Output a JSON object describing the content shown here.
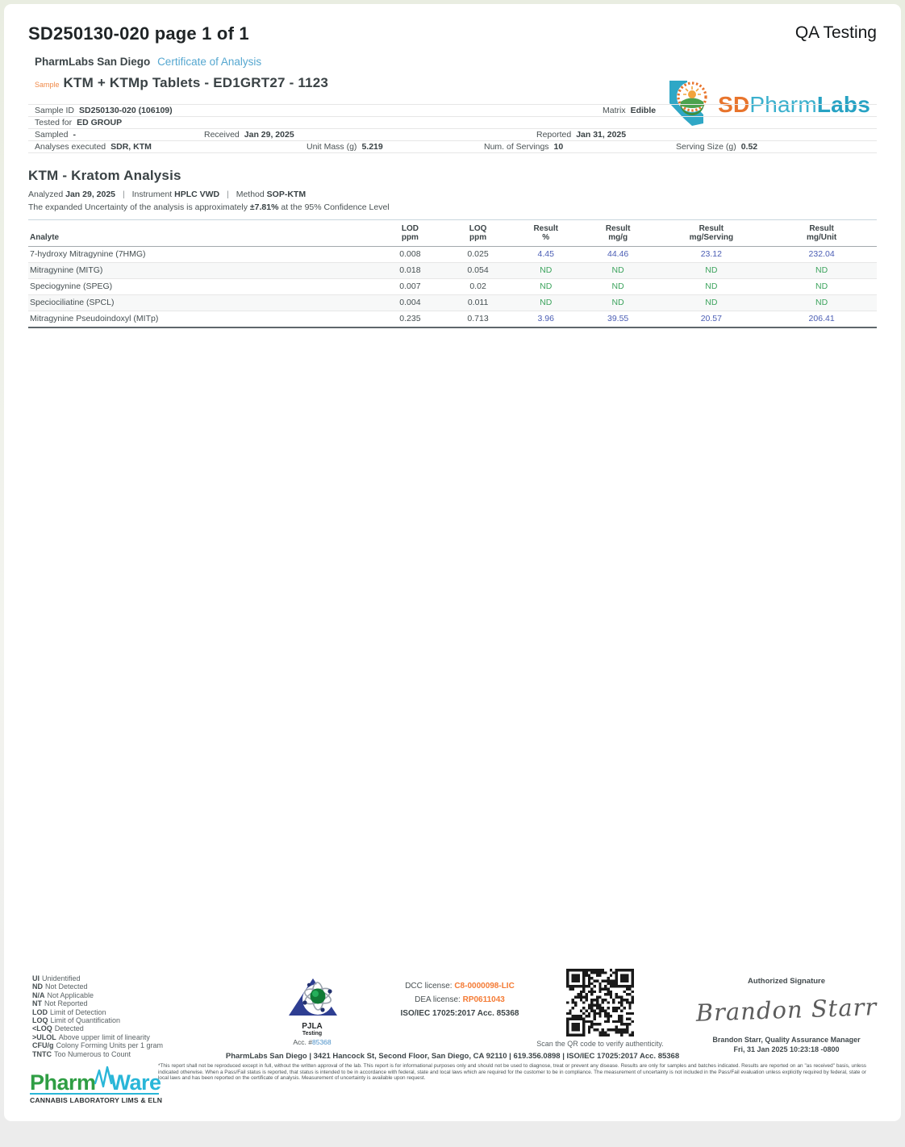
{
  "colors": {
    "accent_blue": "#55a7d0",
    "orange": "#f08a49",
    "logo_orange": "#e8742c",
    "logo_teal": "#3bb0cd",
    "result_blue": "#4a5db4",
    "nd_green": "#3da45e",
    "license_orange": "#f47b35",
    "pjla_blue": "#2e3e92",
    "pharmware_green": "#2f9e44",
    "pharmware_teal": "#29b6d8"
  },
  "page": {
    "doc_title": "SD250130-020 page 1 of 1",
    "qa_label": "QA Testing"
  },
  "header": {
    "lab_name": "PharmLabs San Diego",
    "coa_label": "Certificate of Analysis",
    "sample_label": "Sample",
    "sample_name": "KTM + KTMp Tablets - ED1GRT27 - 1123",
    "logo_sd": "SD",
    "logo_pharm": "Pharm",
    "logo_labs": "Labs"
  },
  "sample_info": {
    "sample_id_label": "Sample ID",
    "sample_id": "SD250130-020 (106109)",
    "matrix_label": "Matrix",
    "matrix": "Edible",
    "tested_for_label": "Tested for",
    "tested_for": "ED GROUP",
    "sampled_label": "Sampled",
    "sampled": "-",
    "received_label": "Received",
    "received": "Jan 29, 2025",
    "reported_label": "Reported",
    "reported": "Jan 31, 2025",
    "analyses_label": "Analyses executed",
    "analyses": "SDR, KTM",
    "unit_mass_label": "Unit Mass (g)",
    "unit_mass": "5.219",
    "servings_label": "Num. of Servings",
    "servings": "10",
    "serving_size_label": "Serving Size (g)",
    "serving_size": "0.52"
  },
  "ktm": {
    "title": "KTM - Kratom Analysis",
    "analyzed_label": "Analyzed",
    "analyzed": "Jan 29, 2025",
    "instrument_label": "Instrument",
    "instrument": "HPLC VWD",
    "method_label": "Method",
    "method": "SOP-KTM",
    "sep": "|",
    "uncertainty_prefix": "The expanded Uncertainty of the analysis is approximately",
    "uncertainty_value": "±7.81%",
    "uncertainty_suffix": "at the 95% Confidence Level"
  },
  "results": {
    "columns": [
      {
        "l1": "Analyte",
        "l2": ""
      },
      {
        "l1": "LOD",
        "l2": "ppm"
      },
      {
        "l1": "LOQ",
        "l2": "ppm"
      },
      {
        "l1": "Result",
        "l2": "%"
      },
      {
        "l1": "Result",
        "l2": "mg/g"
      },
      {
        "l1": "Result",
        "l2": "mg/Serving"
      },
      {
        "l1": "Result",
        "l2": "mg/Unit"
      }
    ],
    "rows": [
      {
        "analyte": "7-hydroxy Mitragynine (7HMG)",
        "lod": "0.008",
        "loq": "0.025",
        "pct": "4.45",
        "mg_g": "44.46",
        "mg_serving": "23.12",
        "mg_unit": "232.04",
        "status": "detected"
      },
      {
        "analyte": "Mitragynine (MITG)",
        "lod": "0.018",
        "loq": "0.054",
        "pct": "ND",
        "mg_g": "ND",
        "mg_serving": "ND",
        "mg_unit": "ND",
        "status": "nd"
      },
      {
        "analyte": "Speciogynine (SPEG)",
        "lod": "0.007",
        "loq": "0.02",
        "pct": "ND",
        "mg_g": "ND",
        "mg_serving": "ND",
        "mg_unit": "ND",
        "status": "nd"
      },
      {
        "analyte": "Speciociliatine (SPCL)",
        "lod": "0.004",
        "loq": "0.011",
        "pct": "ND",
        "mg_g": "ND",
        "mg_serving": "ND",
        "mg_unit": "ND",
        "status": "nd"
      },
      {
        "analyte": "Mitragynine Pseudoindoxyl (MITp)",
        "lod": "0.235",
        "loq": "0.713",
        "pct": "3.96",
        "mg_g": "39.55",
        "mg_serving": "20.57",
        "mg_unit": "206.41",
        "status": "detected"
      }
    ]
  },
  "legend": {
    "items": [
      {
        "abbr": "UI",
        "text": "Unidentified"
      },
      {
        "abbr": "ND",
        "text": "Not Detected"
      },
      {
        "abbr": "N/A",
        "text": "Not Applicable"
      },
      {
        "abbr": "NT",
        "text": "Not Reported"
      },
      {
        "abbr": "LOD",
        "text": "Limit of Detection"
      },
      {
        "abbr": "LOQ",
        "text": "Limit of Quantification"
      },
      {
        "abbr": "<LOQ",
        "text": "Detected"
      },
      {
        "abbr": ">ULOL",
        "text": "Above upper limit of linearity"
      },
      {
        "abbr": "CFU/g",
        "text": "Colony Forming Units per 1 gram"
      },
      {
        "abbr": "TNTC",
        "text": "Too Numerous to Count"
      }
    ]
  },
  "pjla": {
    "name": "PJLA",
    "sub": "Testing",
    "acc_label": "Acc. #",
    "acc_number": "85368"
  },
  "licenses": {
    "dcc_label": "DCC license:",
    "dcc_value": "C8-0000098-LIC",
    "dea_label": "DEA license:",
    "dea_value": "RP0611043",
    "iso_line": "ISO/IEC 17025:2017 Acc. 85368"
  },
  "qr": {
    "caption": "Scan the QR code to verify authenticity."
  },
  "signature": {
    "heading": "Authorized Signature",
    "name": "Brandon Starr",
    "title_line": "Brandon Starr, Quality Assurance Manager",
    "date_line": "Fri, 31 Jan 2025 10:23:18 -0800"
  },
  "footer": {
    "address": "PharmLabs San Diego | 3421 Hancock St, Second Floor, San Diego, CA 92110 | 619.356.0898 | ISO/IEC 17025:2017 Acc. 85368",
    "disclaimer": "*This report shall not be reproduced except in full, without the written approval of the lab. This report is for informational purposes only and should not be used to diagnose, treat or prevent any disease. Results are only for samples and batches indicated. Results are reported on an \"as received\" basis, unless indicated otherwise. When a Pass/Fail status is reported, that status is intended to be in accordance with federal, state and local laws which are required for the customer to be in compliance. The measurement of uncertainty is not included in the Pass/Fail evaluation unless explicitly required by federal, state or local laws and has been reported on the certificate of analysis. Measurement of uncertainty is available upon request."
  },
  "pharmware": {
    "pharm": "Pharm",
    "ware": "Ware",
    "tagline": "CANNABIS LABORATORY LIMS & ELN"
  }
}
